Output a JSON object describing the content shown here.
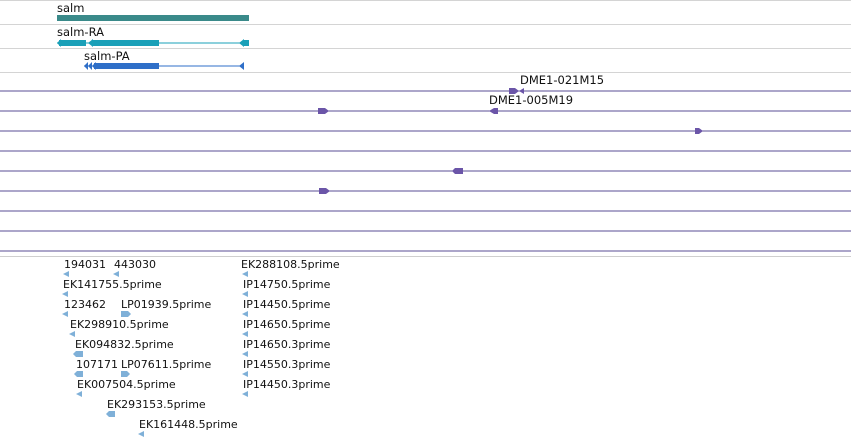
{
  "genes": [
    {
      "name": "salm"
    },
    {
      "name": "salm-RA"
    },
    {
      "name": "salm-PA"
    }
  ],
  "clones": [
    {
      "name": "DME1-021M15"
    },
    {
      "name": "DME1-005M19"
    }
  ],
  "ests": [
    "194031",
    "443030",
    "EK288108.5prime",
    "EK141755.5prime",
    "IP14750.5prime",
    "123462",
    "LP01939.5prime",
    "IP14450.5prime",
    "EK298910.5prime",
    "IP14650.5prime",
    "EK094832.5prime",
    "IP14650.3prime",
    "107171",
    "LP07611.5prime",
    "IP14550.3prime",
    "EK007504.5prime",
    "IP14450.3prime",
    "EK293153.5prime",
    "EK161448.5prime"
  ],
  "colors": {
    "gene": "#3a8a8a",
    "transcript_ra": "#1aa0b8",
    "transcript_pa": "#2f6fc8",
    "clone": "#6b55a8",
    "est": "#7fb0d8"
  }
}
